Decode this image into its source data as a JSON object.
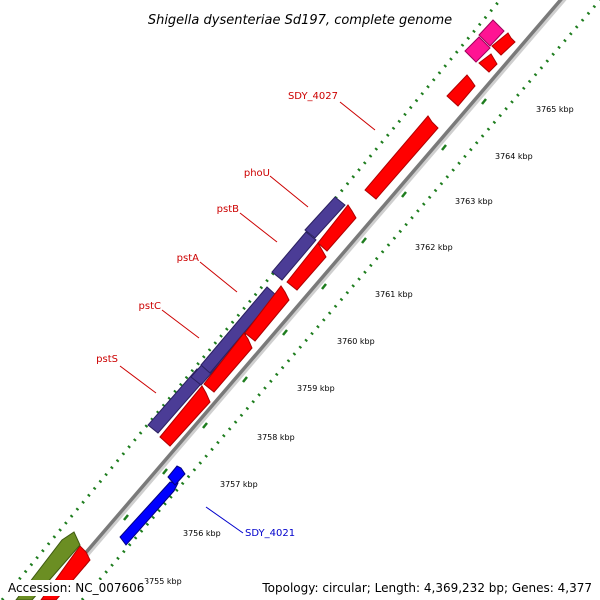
{
  "title": "Shigella dysenteriae Sd197, complete genome",
  "accession": "Accession: NC_007606",
  "topology": "Topology: circular; Length: 4,369,232 bp; Genes: 4,377",
  "colors": {
    "backbone": "#8c8c8c",
    "tick_dots": "#1e7d1e",
    "forward_strand": "#ff0000",
    "reverse_strand": "#4b3c96",
    "blue_gene": "#0000ff",
    "pink_gene": "#ff1493",
    "olive_gene": "#6b8e23",
    "label_red": "#cc0000",
    "label_blue": "#0000cc"
  },
  "ticks": [
    "3755 kbp",
    "3756 kbp",
    "3757 kbp",
    "3758 kbp",
    "3759 kbp",
    "3760 kbp",
    "3761 kbp",
    "3762 kbp",
    "3763 kbp",
    "3764 kbp",
    "3765 kbp"
  ],
  "gene_labels": [
    {
      "name": "SDY_4027",
      "color": "label_red"
    },
    {
      "name": "phoU",
      "color": "label_red"
    },
    {
      "name": "pstB",
      "color": "label_red"
    },
    {
      "name": "pstA",
      "color": "label_red"
    },
    {
      "name": "pstC",
      "color": "label_red"
    },
    {
      "name": "pstS",
      "color": "label_red"
    },
    {
      "name": "SDY_4021",
      "color": "label_blue"
    }
  ]
}
